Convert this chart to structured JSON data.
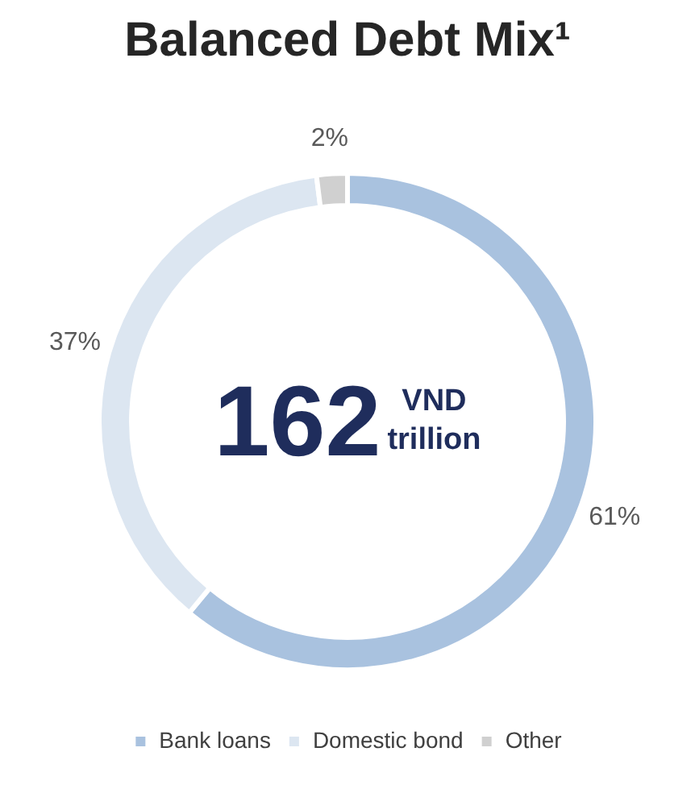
{
  "chart_data": {
    "type": "donut",
    "title": "Balanced Debt Mix¹",
    "categories": [
      "Bank loans",
      "Domestic bond",
      "Other"
    ],
    "values": [
      61,
      37,
      2
    ],
    "colors": [
      "#a9c2df",
      "#dce6f1",
      "#d0d0d0"
    ],
    "value_labels": [
      "61%",
      "37%",
      "2%"
    ],
    "annotations": [
      "162",
      "VND trillion"
    ],
    "legend": "bottom"
  }
}
